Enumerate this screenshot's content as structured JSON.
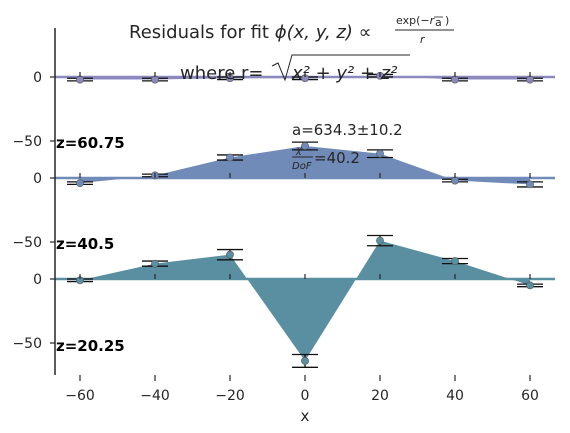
{
  "chart_data": {
    "type": "area",
    "title": "Residuals for fit φ(x, y, z) ∝ exp(−r/a) / r",
    "title_line1_prefix": "Residuals for fit ",
    "title_phi": "ϕ(x, y, z) ∝ ",
    "title_exp_num": "exp(−",
    "title_exp_r": "r",
    "title_exp_a": "a",
    "title_exp_close": ")",
    "title_exp_den": "r",
    "title_line2_prefix": "where r=",
    "title_line2_expr": "x² + y² + z²",
    "xlabel": "x",
    "ylabel": "",
    "xlim": [
      -67,
      67
    ],
    "x_ticks": [
      -60,
      -40,
      -20,
      0,
      20,
      40,
      60
    ],
    "x_tick_labels": [
      "−60",
      "−40",
      "−20",
      "0",
      "20",
      "40",
      "60"
    ],
    "y_tick_labels": [
      "0",
      "−50"
    ],
    "grid": false,
    "annotation_fit": "a=634.3±10.2",
    "annotation_chi_num": "χ",
    "annotation_chi_den": "DoF",
    "annotation_chi_value": "=40.2",
    "rows": [
      {
        "label": "z=60.75",
        "color": "#8c89bf",
        "x": [
          -60,
          -40,
          -20,
          0,
          20,
          40,
          60
        ],
        "y": [
          -2,
          -2,
          -1,
          -1,
          1,
          -2,
          -2
        ],
        "err": [
          1,
          1,
          1,
          1,
          1,
          1,
          1
        ]
      },
      {
        "label": "z=40.5",
        "color": "#718bb8",
        "x": [
          -60,
          -40,
          -20,
          0,
          20,
          40,
          60
        ],
        "y": [
          -4,
          2,
          16,
          25,
          19,
          -2,
          -5
        ],
        "err": [
          1,
          1,
          2,
          3,
          3,
          1,
          2
        ]
      },
      {
        "label": "z=20.25",
        "color": "#5a8fa1",
        "x": [
          -60,
          -40,
          -20,
          0,
          20,
          40,
          60
        ],
        "y": [
          -1,
          12,
          19,
          -64,
          30,
          14,
          -5
        ],
        "err": [
          1,
          2,
          4,
          5,
          4,
          2,
          1
        ]
      }
    ]
  }
}
